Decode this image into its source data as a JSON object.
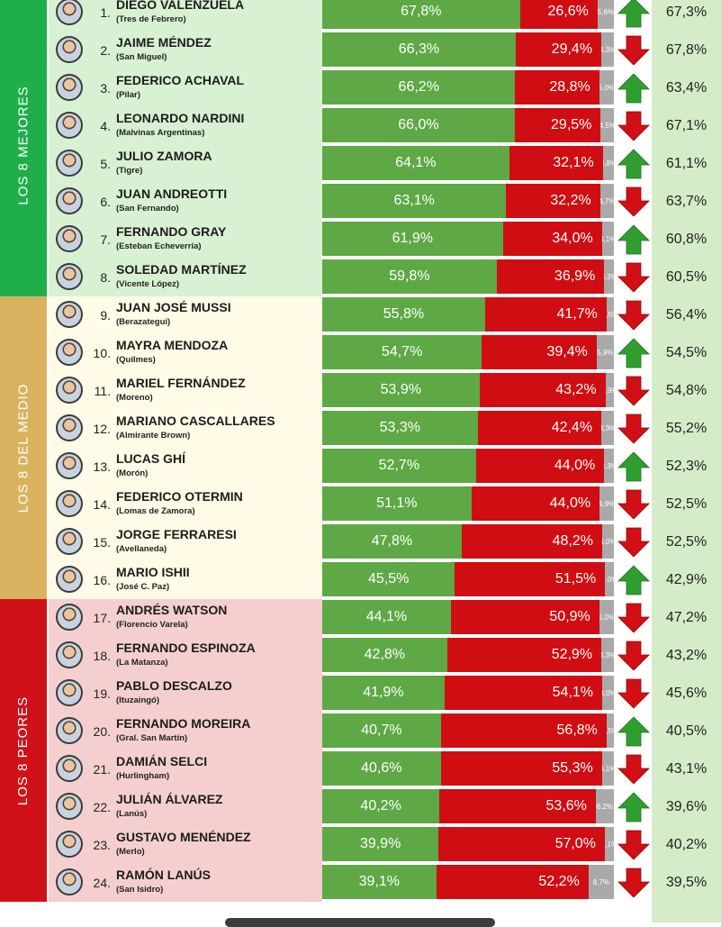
{
  "chart_data": {
    "type": "bar",
    "stacked": true,
    "groups": [
      {
        "label": "LOS 8 MEJORES",
        "color": "#1fae4a",
        "bg": "#d9f1d3"
      },
      {
        "label": "LOS 8 DEL MEDIO",
        "color": "#d9b25f",
        "bg": "#fffbe6"
      },
      {
        "label": "LOS 8 PEORES",
        "color": "#d01218",
        "bg": "#f5cfcf"
      }
    ],
    "rows": [
      {
        "rank": "1.",
        "name": "DIEGO VALENZUELA",
        "city": "(Tres de Febrero)",
        "positive": 67.8,
        "negative": 26.6,
        "ns": 5.6,
        "positive_label": "67,8%",
        "negative_label": "26,6%",
        "ns_label": "5,6%",
        "trend": "up",
        "previous": "67,3%"
      },
      {
        "rank": "2.",
        "name": "JAIME MÉNDEZ",
        "city": "(San Miguel)",
        "positive": 66.3,
        "negative": 29.4,
        "ns": 4.3,
        "positive_label": "66,3%",
        "negative_label": "29,4%",
        "ns_label": "4,3%",
        "trend": "down",
        "previous": "67,8%"
      },
      {
        "rank": "3.",
        "name": "FEDERICO ACHAVAL",
        "city": "(Pilar)",
        "positive": 66.2,
        "negative": 28.8,
        "ns": 5.0,
        "positive_label": "66,2%",
        "negative_label": "28,8%",
        "ns_label": "5,0%",
        "trend": "up",
        "previous": "63,4%"
      },
      {
        "rank": "4.",
        "name": "LEONARDO NARDINI",
        "city": "(Malvinas Argentinas)",
        "positive": 66.0,
        "negative": 29.5,
        "ns": 4.5,
        "positive_label": "66,0%",
        "negative_label": "29,5%",
        "ns_label": "4,5%",
        "trend": "down",
        "previous": "67,1%"
      },
      {
        "rank": "5.",
        "name": "JULIO ZAMORA",
        "city": "(Tigre)",
        "positive": 64.1,
        "negative": 32.1,
        "ns": 3.8,
        "positive_label": "64,1%",
        "negative_label": "32,1%",
        "ns_label": "3,8%",
        "trend": "up",
        "previous": "61,1%"
      },
      {
        "rank": "6.",
        "name": "JUAN ANDREOTTI",
        "city": "(San Fernando)",
        "positive": 63.1,
        "negative": 32.2,
        "ns": 4.7,
        "positive_label": "63,1%",
        "negative_label": "32,2%",
        "ns_label": "4,7%",
        "trend": "down",
        "previous": "63,7%"
      },
      {
        "rank": "7.",
        "name": "FERNANDO GRAY",
        "city": "(Esteban Echeverría)",
        "positive": 61.9,
        "negative": 34.0,
        "ns": 4.1,
        "positive_label": "61,9%",
        "negative_label": "34,0%",
        "ns_label": "4,1%",
        "trend": "up",
        "previous": "60,8%"
      },
      {
        "rank": "8.",
        "name": "SOLEDAD MARTÍNEZ",
        "city": "(Vicente López)",
        "positive": 59.8,
        "negative": 36.9,
        "ns": 3.3,
        "positive_label": "59,8%",
        "negative_label": "36,9%",
        "ns_label": "3,3%",
        "trend": "down",
        "previous": "60,5%"
      },
      {
        "rank": "9.",
        "name": "JUAN JOSÉ MUSSI",
        "city": "(Berazategui)",
        "positive": 55.8,
        "negative": 41.7,
        "ns": 2.5,
        "positive_label": "55,8%",
        "negative_label": "41,7%",
        "ns_label": "2,5%",
        "trend": "down",
        "previous": "56,4%"
      },
      {
        "rank": "10.",
        "name": "MAYRA MENDOZA",
        "city": "(Quilmes)",
        "positive": 54.7,
        "negative": 39.4,
        "ns": 5.9,
        "positive_label": "54,7%",
        "negative_label": "39,4%",
        "ns_label": "5,9%",
        "trend": "up",
        "previous": "54,5%"
      },
      {
        "rank": "11.",
        "name": "MARIEL FERNÁNDEZ",
        "city": "(Moreno)",
        "positive": 53.9,
        "negative": 43.2,
        "ns": 2.9,
        "positive_label": "53,9%",
        "negative_label": "43,2%",
        "ns_label": "2,9%",
        "trend": "down",
        "previous": "54,8%"
      },
      {
        "rank": "12.",
        "name": "MARIANO CASCALLARES",
        "city": "(Almirante Brown)",
        "positive": 53.3,
        "negative": 42.4,
        "ns": 4.3,
        "positive_label": "53,3%",
        "negative_label": "42,4%",
        "ns_label": "4,3%",
        "trend": "down",
        "previous": "55,2%"
      },
      {
        "rank": "13.",
        "name": "LUCAS GHÍ",
        "city": "(Morón)",
        "positive": 52.7,
        "negative": 44.0,
        "ns": 3.3,
        "positive_label": "52,7%",
        "negative_label": "44,0%",
        "ns_label": "3,3%",
        "trend": "up",
        "previous": "52,3%"
      },
      {
        "rank": "14.",
        "name": "FEDERICO OTERMIN",
        "city": "(Lomas de Zamora)",
        "positive": 51.1,
        "negative": 44.0,
        "ns": 4.9,
        "positive_label": "51,1%",
        "negative_label": "44,0%",
        "ns_label": "4,9%",
        "trend": "down",
        "previous": "52,5%"
      },
      {
        "rank": "15.",
        "name": "JORGE FERRARESI",
        "city": "(Avellaneda)",
        "positive": 47.8,
        "negative": 48.2,
        "ns": 4.0,
        "positive_label": "47,8%",
        "negative_label": "48,2%",
        "ns_label": "4,0%",
        "trend": "down",
        "previous": "52,5%"
      },
      {
        "rank": "16.",
        "name": "MARIO ISHII",
        "city": "(José C. Paz)",
        "positive": 45.5,
        "negative": 51.5,
        "ns": 3.0,
        "positive_label": "45,5%",
        "negative_label": "51,5%",
        "ns_label": "3,0%",
        "trend": "up",
        "previous": "42,9%"
      },
      {
        "rank": "17.",
        "name": "ANDRÉS WATSON",
        "city": "(Florencio Varela)",
        "positive": 44.1,
        "negative": 50.9,
        "ns": 5.0,
        "positive_label": "44,1%",
        "negative_label": "50,9%",
        "ns_label": "5,0%",
        "trend": "down",
        "previous": "47,2%"
      },
      {
        "rank": "18.",
        "name": "FERNANDO ESPINOZA",
        "city": "(La Matanza)",
        "positive": 42.8,
        "negative": 52.9,
        "ns": 4.3,
        "positive_label": "42,8%",
        "negative_label": "52,9%",
        "ns_label": "4,3%",
        "trend": "down",
        "previous": "43,2%"
      },
      {
        "rank": "19.",
        "name": "PABLO DESCALZO",
        "city": "(Ituzaingó)",
        "positive": 41.9,
        "negative": 54.1,
        "ns": 4.0,
        "positive_label": "41,9%",
        "negative_label": "54,1%",
        "ns_label": "4,0%",
        "trend": "down",
        "previous": "45,6%"
      },
      {
        "rank": "20.",
        "name": "FERNANDO MOREIRA",
        "city": "(Gral. San Martín)",
        "positive": 40.7,
        "negative": 56.8,
        "ns": 2.5,
        "positive_label": "40,7%",
        "negative_label": "56,8%",
        "ns_label": "2,5%",
        "trend": "up",
        "previous": "40,5%"
      },
      {
        "rank": "21.",
        "name": "DAMIÁN SELCI",
        "city": "(Hurlingham)",
        "positive": 40.6,
        "negative": 55.3,
        "ns": 4.1,
        "positive_label": "40,6%",
        "negative_label": "55,3%",
        "ns_label": "4,1%",
        "trend": "down",
        "previous": "43,1%"
      },
      {
        "rank": "22.",
        "name": "JULIÁN ÁLVAREZ",
        "city": "(Lanús)",
        "positive": 40.2,
        "negative": 53.6,
        "ns": 6.2,
        "positive_label": "40,2%",
        "negative_label": "53,6%",
        "ns_label": "6,2%",
        "trend": "up",
        "previous": "39,6%"
      },
      {
        "rank": "23.",
        "name": "GUSTAVO MENÉNDEZ",
        "city": "(Merlo)",
        "positive": 39.9,
        "negative": 57.0,
        "ns": 3.1,
        "positive_label": "39,9%",
        "negative_label": "57,0%",
        "ns_label": "3,1%",
        "trend": "down",
        "previous": "40,2%"
      },
      {
        "rank": "24.",
        "name": "RAMÓN LANÚS",
        "city": "(San Isidro)",
        "positive": 39.1,
        "negative": 52.2,
        "ns": 8.7,
        "positive_label": "39,1%",
        "negative_label": "52,2%",
        "ns_label": "8,7%",
        "trend": "down",
        "previous": "39,5%"
      }
    ],
    "colors": {
      "positive": "#5ea845",
      "negative": "#cf0d12",
      "ns": "#a9a9a9",
      "arrow_up": "#2f9e2f",
      "arrow_down": "#d10f14"
    }
  }
}
